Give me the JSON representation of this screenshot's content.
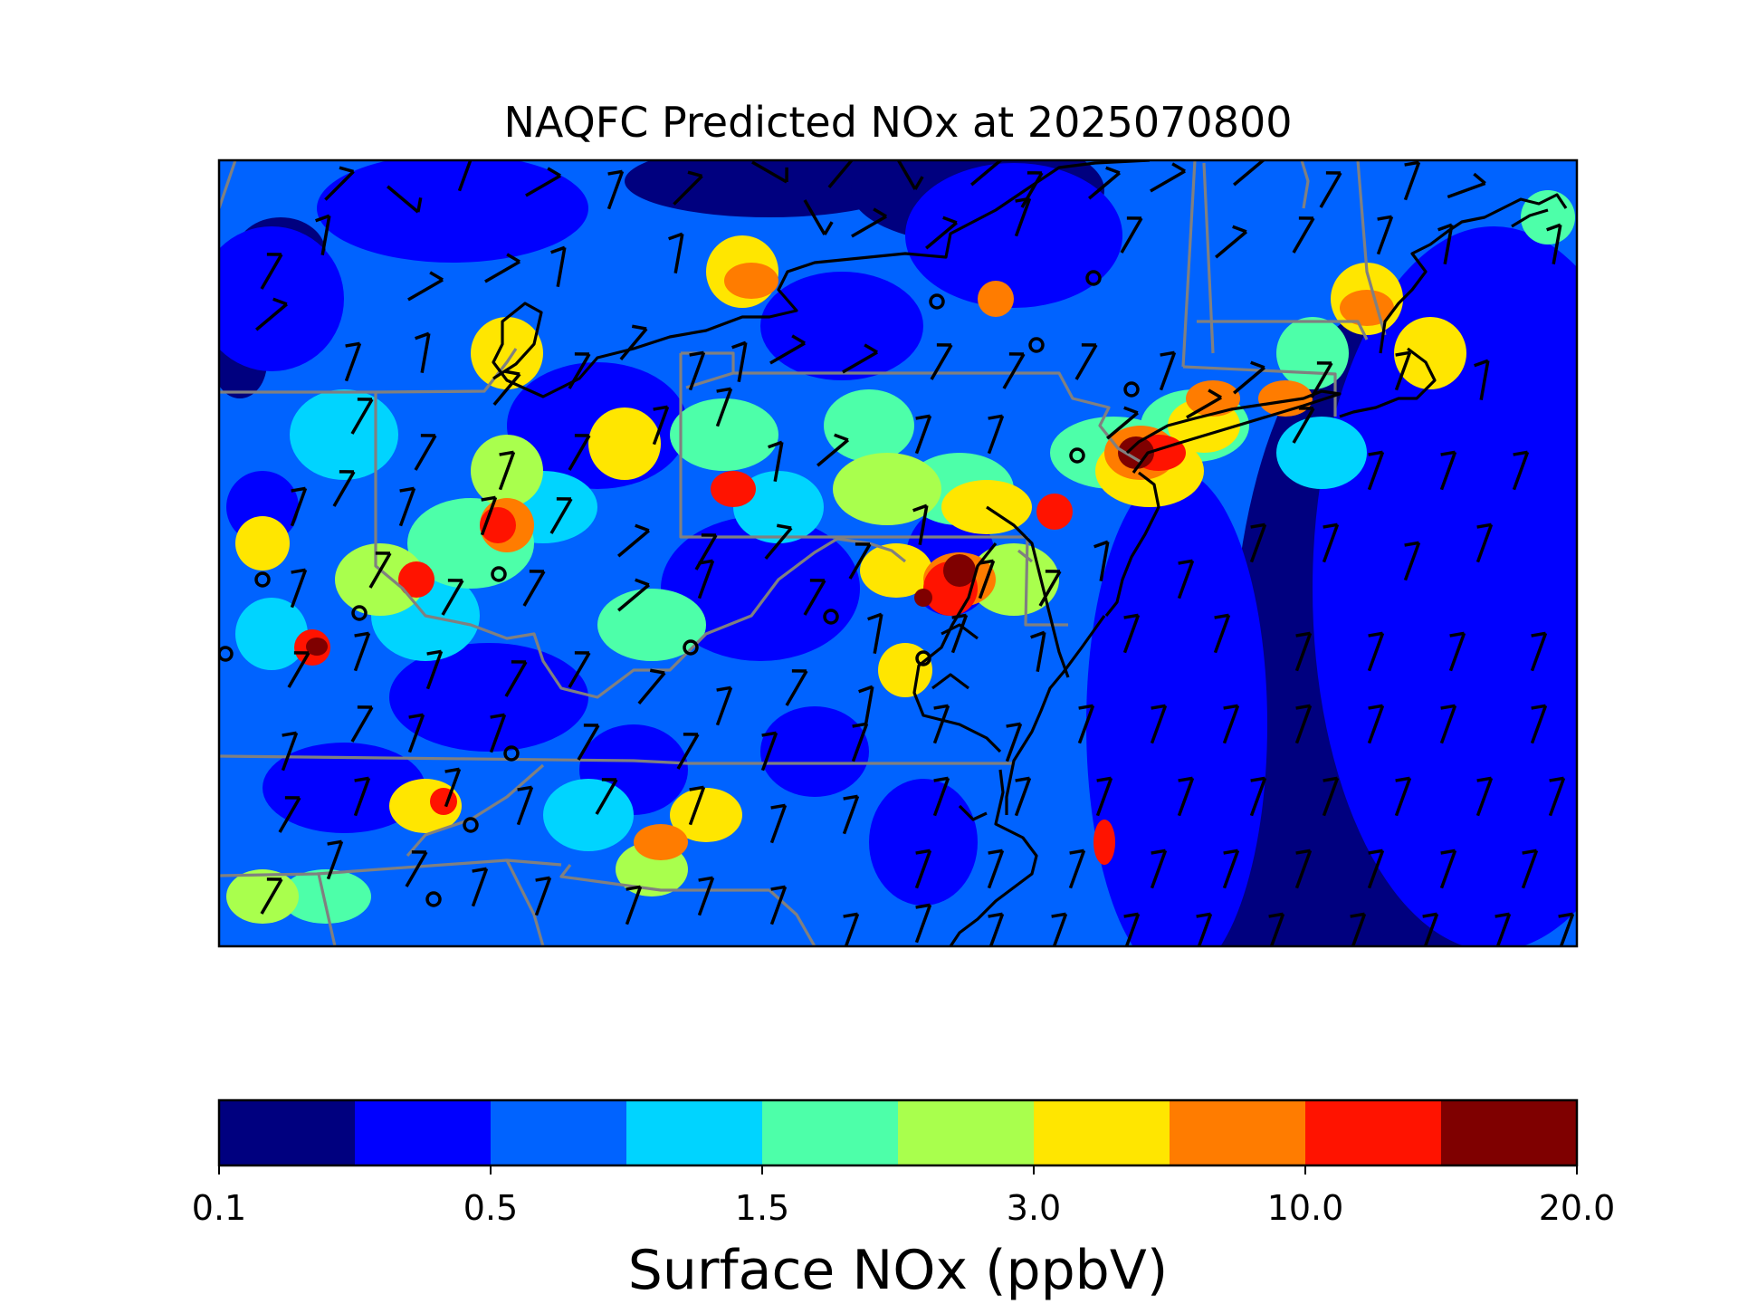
{
  "title": "NAQFC Predicted NOx at 2025070800",
  "colorbar": {
    "label": "Surface NOx (ppbV)",
    "levels": [
      "0.1",
      "",
      "0.5",
      "",
      "1.5",
      "",
      "3.0",
      "",
      "10.0",
      "",
      "20.0"
    ],
    "tick_labels": [
      "0.1",
      "0.5",
      "1.5",
      "3.0",
      "10.0",
      "20.0"
    ],
    "colors": [
      "#00007f",
      "#0000ff",
      "#0063ff",
      "#00d4ff",
      "#4dffa9",
      "#a9ff4d",
      "#ffe600",
      "#ff7c00",
      "#ff1300",
      "#7f0000"
    ]
  },
  "map": {
    "region": "Mid-Atlantic / Northeast United States",
    "overlays": [
      "state borders (gray)",
      "coastlines (black)",
      "wind barbs (black)",
      "calm-wind circles"
    ]
  }
}
